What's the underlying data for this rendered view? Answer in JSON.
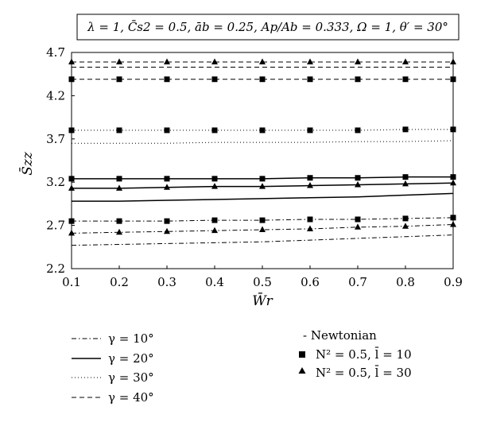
{
  "chart_data": {
    "type": "line",
    "parameters_text": "λ = 1, C̄s2 = 0.5, āb = 0.25, Ap/Ab = 0.333, Ω = 1, θ′ = 30°",
    "xlabel": "W̄r",
    "ylabel": "S̄zz",
    "x": [
      0.1,
      0.2,
      0.3,
      0.4,
      0.5,
      0.6,
      0.7,
      0.8,
      0.9
    ],
    "xticks": [
      "0.1",
      "0.2",
      "0.3",
      "0.4",
      "0.5",
      "0.6",
      "0.7",
      "0.8",
      "0.9"
    ],
    "yticks": [
      "2.2",
      "2.7",
      "3.2",
      "3.7",
      "4.2",
      "4.7"
    ],
    "xlim": [
      0.1,
      0.9
    ],
    "ylim": [
      2.2,
      4.7
    ],
    "grid": false,
    "styles": [
      {
        "label": "γ = 10°",
        "dash": "dashdot"
      },
      {
        "label": "γ = 20°",
        "dash": "solid"
      },
      {
        "label": "γ = 30°",
        "dash": "dotted"
      },
      {
        "label": "γ = 40°",
        "dash": "dashed"
      }
    ],
    "markers": [
      {
        "label": "- Newtonian",
        "marker": "none"
      },
      {
        "label": "N² = 0.5, l̄ = 10",
        "marker": "square"
      },
      {
        "label": "N² = 0.5, l̄ = 30",
        "marker": "triangle"
      }
    ],
    "series": [
      {
        "style": 0,
        "marker": "none",
        "values": [
          2.47,
          2.48,
          2.49,
          2.5,
          2.51,
          2.53,
          2.55,
          2.57,
          2.59
        ]
      },
      {
        "style": 0,
        "marker": "square",
        "values": [
          2.75,
          2.75,
          2.75,
          2.76,
          2.76,
          2.77,
          2.77,
          2.78,
          2.79
        ]
      },
      {
        "style": 0,
        "marker": "triangle",
        "values": [
          2.61,
          2.62,
          2.63,
          2.64,
          2.65,
          2.66,
          2.68,
          2.69,
          2.71
        ]
      },
      {
        "style": 1,
        "marker": "none",
        "values": [
          2.98,
          2.98,
          2.99,
          3.0,
          3.01,
          3.02,
          3.03,
          3.05,
          3.07
        ]
      },
      {
        "style": 1,
        "marker": "square",
        "values": [
          3.24,
          3.24,
          3.24,
          3.24,
          3.24,
          3.25,
          3.25,
          3.26,
          3.26
        ]
      },
      {
        "style": 1,
        "marker": "triangle",
        "values": [
          3.13,
          3.13,
          3.14,
          3.15,
          3.15,
          3.16,
          3.17,
          3.18,
          3.19
        ]
      },
      {
        "style": 2,
        "marker": "none",
        "values": [
          3.65,
          3.65,
          3.65,
          3.66,
          3.66,
          3.66,
          3.67,
          3.67,
          3.68
        ]
      },
      {
        "style": 2,
        "marker": "square",
        "values": [
          3.8,
          3.8,
          3.8,
          3.8,
          3.8,
          3.8,
          3.8,
          3.81,
          3.81
        ]
      },
      {
        "style": 3,
        "marker": "none",
        "values": [
          4.53,
          4.53,
          4.53,
          4.53,
          4.53,
          4.53,
          4.53,
          4.53,
          4.53
        ]
      },
      {
        "style": 3,
        "marker": "square",
        "values": [
          4.39,
          4.39,
          4.39,
          4.39,
          4.39,
          4.39,
          4.39,
          4.39,
          4.39
        ]
      },
      {
        "style": 3,
        "marker": "triangle",
        "values": [
          4.59,
          4.59,
          4.59,
          4.59,
          4.59,
          4.59,
          4.59,
          4.59,
          4.59
        ]
      }
    ]
  }
}
